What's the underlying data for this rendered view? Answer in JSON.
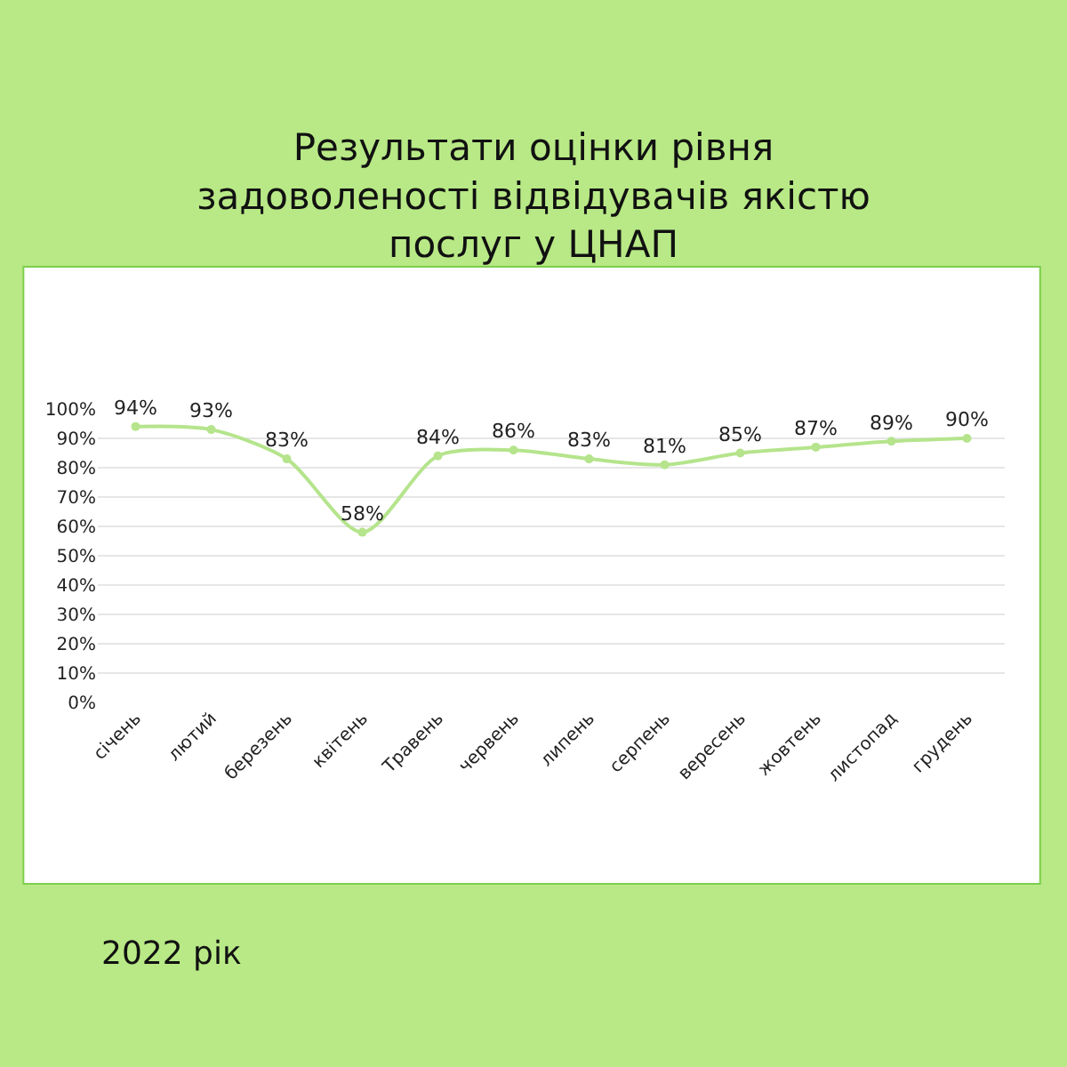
{
  "chart_data": {
    "type": "line",
    "title": "Результати оцінки рівня\nзадоволеності відвідувачів якістю\nпослуг у ЦНАП",
    "categories": [
      "січень",
      "лютий",
      "березень",
      "квітень",
      "Травень",
      "червень",
      "липень",
      "серпень",
      "вересень",
      "жовтень",
      "листопад",
      "грудень"
    ],
    "series": [
      {
        "color": "#b5e48c",
        "values": [
          94,
          93,
          83,
          58,
          84,
          86,
          83,
          81,
          85,
          87,
          89,
          90
        ],
        "value_labels": [
          "94%",
          "93%",
          "83%",
          "58%",
          "84%",
          "86%",
          "83%",
          "81%",
          "85%",
          "87%",
          "89%",
          "90%"
        ]
      }
    ],
    "ylim": [
      0,
      100
    ],
    "yticks": [
      {
        "value": 0,
        "label": "0%"
      },
      {
        "value": 10,
        "label": "10%"
      },
      {
        "value": 20,
        "label": "20%"
      },
      {
        "value": 30,
        "label": "30%"
      },
      {
        "value": 40,
        "label": "40%"
      },
      {
        "value": 50,
        "label": "50%"
      },
      {
        "value": 60,
        "label": "60%"
      },
      {
        "value": 70,
        "label": "70%"
      },
      {
        "value": 80,
        "label": "80%"
      },
      {
        "value": 90,
        "label": "90%"
      },
      {
        "value": 100,
        "label": "100%"
      }
    ],
    "grid": "y",
    "legend": false,
    "marker": "circle",
    "line_style": "solid",
    "annotations": [
      "2022 рік"
    ]
  }
}
